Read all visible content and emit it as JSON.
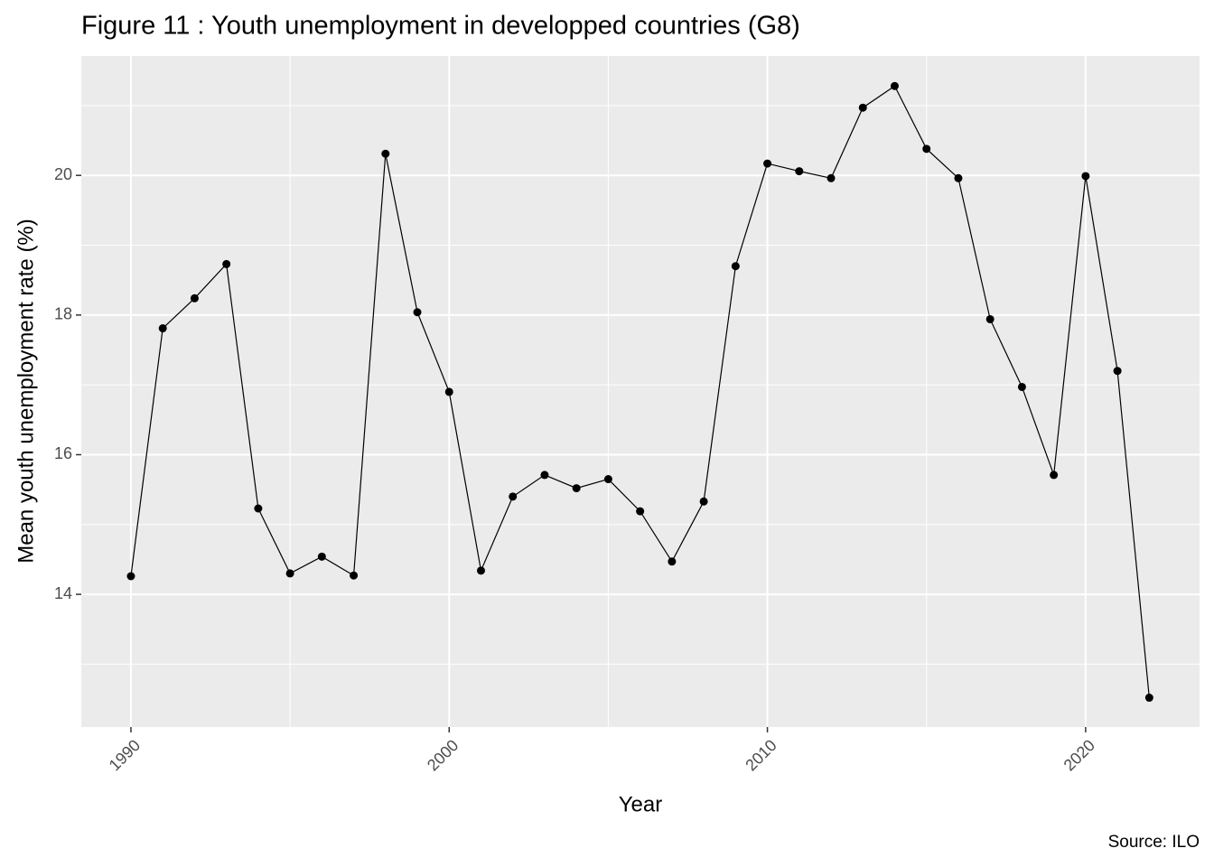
{
  "chart_data": {
    "type": "line",
    "title": "Figure 11 : Youth unemployment in developped countries (G8)",
    "x_label": "Year",
    "y_label": "Mean youth unemployment rate (%)",
    "caption": "Source: ILO",
    "x": [
      1990,
      1991,
      1992,
      1993,
      1994,
      1995,
      1996,
      1997,
      1998,
      1999,
      2000,
      2001,
      2002,
      2003,
      2004,
      2005,
      2006,
      2007,
      2008,
      2009,
      2010,
      2011,
      2012,
      2013,
      2014,
      2015,
      2016,
      2017,
      2018,
      2019,
      2020,
      2021,
      2022
    ],
    "series": [
      {
        "name": "Mean youth unemployment rate",
        "color": "#000000",
        "values": [
          14.26,
          17.81,
          18.24,
          18.73,
          15.23,
          14.3,
          14.54,
          14.27,
          20.31,
          18.04,
          16.9,
          14.34,
          15.4,
          15.71,
          15.52,
          15.65,
          15.19,
          14.47,
          15.33,
          18.7,
          20.17,
          20.06,
          19.96,
          20.97,
          21.28,
          20.38,
          19.96,
          17.94,
          16.97,
          15.71,
          19.99,
          17.2,
          12.52
        ]
      }
    ],
    "xlim": [
      1988.44,
      2023.58
    ],
    "xticks": [
      1990,
      2000,
      2010,
      2020
    ],
    "ylim": [
      12.1,
      21.71
    ],
    "yticks": [
      14,
      16,
      18,
      20
    ],
    "grid": true,
    "minor_grid": true
  }
}
